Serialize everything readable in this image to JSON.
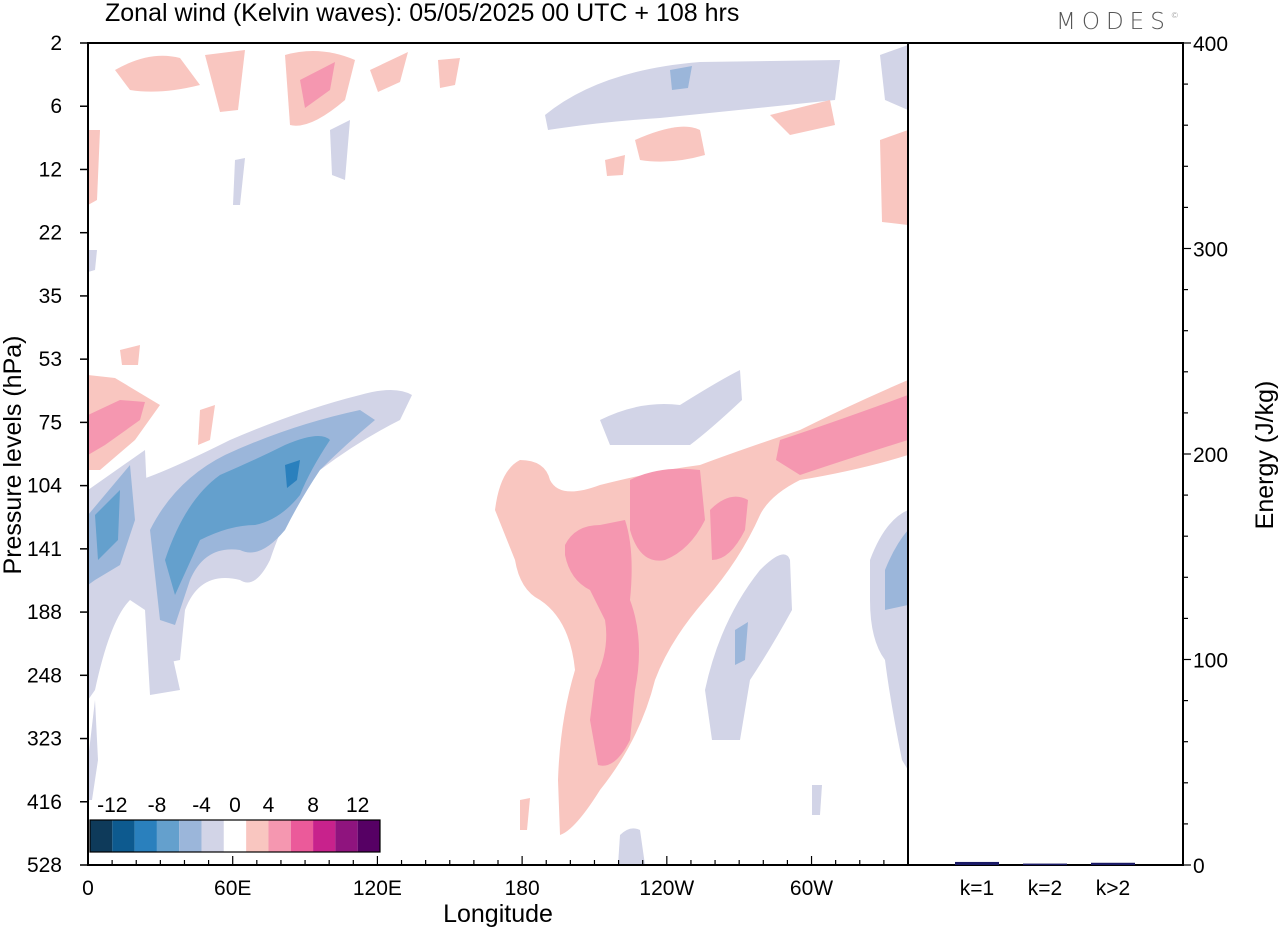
{
  "title": "Zonal wind (Kelvin waves):  05/05/2025  00 UTC  + 108 hrs",
  "logo_text": "MODES",
  "logo_mark": "©",
  "chart_data": [
    {
      "type": "heatmap",
      "title": "Zonal wind (Kelvin waves):  05/05/2025  00 UTC  + 108 hrs",
      "xlabel": "Longitude",
      "ylabel": "Pressure levels (hPa)",
      "x_ticks": [
        "0",
        "60E",
        "120E",
        "180",
        "120W",
        "60W"
      ],
      "x_range_deg": [
        0,
        340
      ],
      "y_ticks": [
        "2",
        "6",
        "12",
        "22",
        "35",
        "53",
        "75",
        "104",
        "141",
        "188",
        "248",
        "323",
        "416",
        "528"
      ],
      "y_order": "top-to-bottom",
      "colorbar": {
        "labels": [
          "-12",
          "-8",
          "-4",
          "0",
          "4",
          "8",
          "12"
        ],
        "levels": [
          -14,
          -12,
          -10,
          -8,
          -6,
          -4,
          -2,
          2,
          4,
          6,
          8,
          10,
          12,
          14
        ],
        "colors": [
          "#0e3a5a",
          "#0d5a8f",
          "#2a80bd",
          "#64a0cd",
          "#9bb6da",
          "#d2d4e7",
          "#ffffff",
          "#f9c6c0",
          "#f597b0",
          "#eb5a9a",
          "#c8228c",
          "#8f147e",
          "#560064"
        ]
      },
      "features": [
        {
          "name": "negative band (60E–120E)",
          "sign": "negative",
          "min_value": -12,
          "pressure_hPa": [
            75,
            248
          ],
          "longitude": [
            "0",
            "130E"
          ]
        },
        {
          "name": "positive plume (180–100W)",
          "sign": "positive",
          "max_value": 6,
          "pressure_hPa": [
            104,
            528
          ],
          "longitude": [
            "180",
            "80W"
          ]
        },
        {
          "name": "positive band (80W–20W)",
          "sign": "positive",
          "max_value": 6,
          "pressure_hPa": [
            53,
            141
          ],
          "longitude": [
            "80W",
            "340"
          ]
        },
        {
          "name": "negative patch near 60W",
          "sign": "negative",
          "min_value": -8,
          "pressure_hPa": [
            141,
            416
          ],
          "longitude": [
            "80W",
            "20W"
          ]
        }
      ]
    },
    {
      "type": "bar",
      "categories": [
        "k=1",
        "k=2",
        "k>2"
      ],
      "values": [
        1,
        0.2,
        0.6
      ],
      "ylabel": "Energy (J/kg)",
      "ylim": [
        0,
        400
      ],
      "y_ticks": [
        "0",
        "100",
        "200",
        "300",
        "400"
      ]
    }
  ],
  "colors": {
    "axis": "#000000",
    "background": "#ffffff",
    "bar": "#1a1a66"
  }
}
